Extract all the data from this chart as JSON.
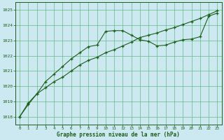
{
  "title": "Graphe pression niveau de la mer (hPa)",
  "background_color": "#cce8f0",
  "plot_bg_color": "#cce8f0",
  "grid_color": "#66bb88",
  "line_color": "#1a5e1a",
  "marker_color": "#1a5e1a",
  "xlim": [
    -0.5,
    23.5
  ],
  "ylim": [
    1017.5,
    1025.5
  ],
  "yticks": [
    1018,
    1019,
    1020,
    1021,
    1022,
    1023,
    1024,
    1025
  ],
  "xticks": [
    0,
    1,
    2,
    3,
    4,
    5,
    6,
    7,
    8,
    9,
    10,
    11,
    12,
    13,
    14,
    15,
    16,
    17,
    18,
    19,
    20,
    21,
    22,
    23
  ],
  "series1_x": [
    0,
    1,
    2,
    3,
    4,
    5,
    6,
    7,
    8,
    9,
    10,
    11,
    12,
    13,
    14,
    15,
    16,
    17,
    18,
    19,
    20,
    21,
    22,
    23
  ],
  "series1_y": [
    1018.0,
    1018.8,
    1019.5,
    1020.3,
    1020.8,
    1021.3,
    1021.8,
    1022.2,
    1022.6,
    1022.7,
    1023.6,
    1023.65,
    1023.65,
    1023.35,
    1023.05,
    1022.95,
    1022.65,
    1022.7,
    1022.9,
    1023.05,
    1023.1,
    1023.25,
    1024.6,
    1024.8
  ],
  "series2_x": [
    0,
    1,
    2,
    3,
    4,
    5,
    6,
    7,
    8,
    9,
    10,
    11,
    12,
    13,
    14,
    15,
    16,
    17,
    18,
    19,
    20,
    21,
    22,
    23
  ],
  "series2_y": [
    1018.0,
    1018.9,
    1019.5,
    1019.9,
    1020.3,
    1020.6,
    1021.0,
    1021.4,
    1021.7,
    1021.9,
    1022.2,
    1022.4,
    1022.65,
    1022.9,
    1023.2,
    1023.35,
    1023.5,
    1023.7,
    1023.85,
    1024.05,
    1024.25,
    1024.45,
    1024.7,
    1024.95
  ]
}
